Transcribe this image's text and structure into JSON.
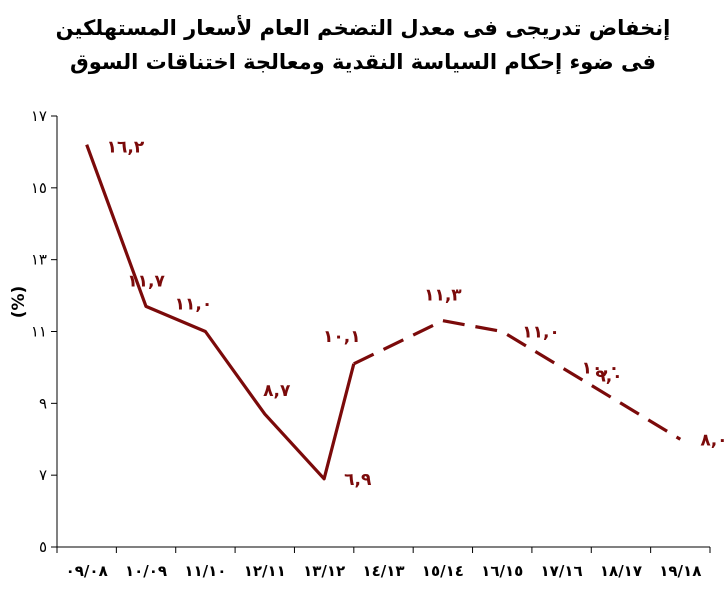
{
  "chart_data": {
    "type": "line",
    "title": "إنخفاض تدريجى فى معدل التضخم العام لأسعار المستهلكين",
    "subtitle": "فى ضوء إحكام السياسة النقدية ومعالجة اختناقات السوق",
    "ylabel": "(%)",
    "xlabel": "",
    "ylim": [
      5,
      17
    ],
    "yticks": [
      5,
      7,
      9,
      11,
      13,
      15,
      17
    ],
    "ytick_labels": [
      "٥",
      "٧",
      "٩",
      "١١",
      "١٣",
      "١٥",
      "١٧"
    ],
    "categories": [
      "٠٩/٠٨",
      "١٠/٠٩",
      "١١/١٠",
      "١٢/١١",
      "١٣/١٢",
      "١٤/١٣",
      "١٥/١٤",
      "١٦/١٥",
      "١٧/١٦",
      "١٨/١٧",
      "١٩/١٨"
    ],
    "grid": false,
    "line_color": "#7b0a0a",
    "series": [
      {
        "style": "solid",
        "points": [
          {
            "x": 0.5,
            "y": 16.2
          },
          {
            "x": 1.5,
            "y": 11.7
          },
          {
            "x": 2.5,
            "y": 11.0
          },
          {
            "x": 3.5,
            "y": 8.7
          },
          {
            "x": 4.5,
            "y": 6.9
          },
          {
            "x": 5.0,
            "y": 10.1
          }
        ]
      },
      {
        "style": "dashed",
        "points": [
          {
            "x": 5.0,
            "y": 10.1
          },
          {
            "x": 6.5,
            "y": 11.3
          },
          {
            "x": 7.5,
            "y": 11.0
          },
          {
            "x": 8.5,
            "y": 10.0
          },
          {
            "x": 9.5,
            "y": 9.0
          },
          {
            "x": 10.5,
            "y": 8.0
          }
        ]
      }
    ],
    "data_labels": [
      {
        "text": "١٦,٢",
        "x": 0.5,
        "y": 16.2,
        "anchor": "right-below"
      },
      {
        "text": "١١,٧",
        "x": 1.5,
        "y": 11.7,
        "anchor": "above"
      },
      {
        "text": "١١,٠",
        "x": 2.5,
        "y": 11.0,
        "anchor": "above-left"
      },
      {
        "text": "٨,٧",
        "x": 3.5,
        "y": 8.7,
        "anchor": "above-right"
      },
      {
        "text": "٦,٩",
        "x": 4.5,
        "y": 6.9,
        "anchor": "right"
      },
      {
        "text": "١٠,١",
        "x": 5.0,
        "y": 10.1,
        "anchor": "above-left"
      },
      {
        "text": "١١,٣",
        "x": 6.5,
        "y": 11.3,
        "anchor": "above"
      },
      {
        "text": "١١,٠",
        "x": 7.5,
        "y": 11.0,
        "anchor": "right"
      },
      {
        "text": "١٠,٠",
        "x": 8.5,
        "y": 10.0,
        "anchor": "right"
      },
      {
        "text": "٩,٠",
        "x": 9.5,
        "y": 9.0,
        "anchor": "above-left"
      },
      {
        "text": "٨,٠",
        "x": 10.5,
        "y": 8.0,
        "anchor": "right"
      }
    ]
  }
}
